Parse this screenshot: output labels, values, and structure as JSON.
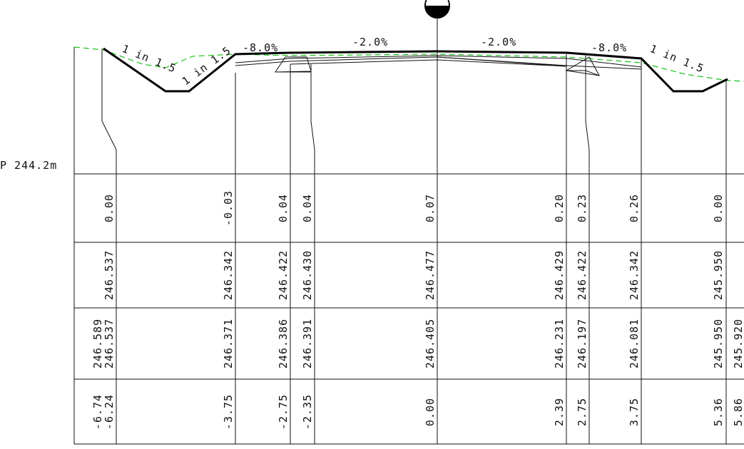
{
  "datum_label": "P 244.2m",
  "slope_labels": {
    "left_cut_outer": "1 in 1.5",
    "left_cut_inner": "1 in 1.5",
    "left_shoulder": "-8.0%",
    "left_lane": "-2.0%",
    "right_lane": "-2.0%",
    "right_shoulder": "-8.0%",
    "right_cut": "1 in 1.5"
  },
  "table": {
    "columns": [
      {
        "offset": [
          "-6.74",
          "-6.24"
        ],
        "existing": [
          "246.589",
          "246.537"
        ],
        "design": [
          "246.537"
        ],
        "depth": [
          "0.00"
        ]
      },
      {
        "offset": [
          "-3.75"
        ],
        "existing": [
          "246.371"
        ],
        "design": [
          "246.342"
        ],
        "depth": [
          "-0.03"
        ]
      },
      {
        "offset": [
          "-2.75"
        ],
        "existing": [
          "246.386"
        ],
        "design": [
          "246.422"
        ],
        "depth": [
          "0.04"
        ]
      },
      {
        "offset": [
          "-2.35"
        ],
        "existing": [
          "246.391"
        ],
        "design": [
          "246.430"
        ],
        "depth": [
          "0.04"
        ]
      },
      {
        "offset": [
          "0.00"
        ],
        "existing": [
          "246.405"
        ],
        "design": [
          "246.477"
        ],
        "depth": [
          "0.07"
        ]
      },
      {
        "offset": [
          "2.39"
        ],
        "existing": [
          "246.231"
        ],
        "design": [
          "246.429"
        ],
        "depth": [
          "0.20"
        ]
      },
      {
        "offset": [
          "2.75"
        ],
        "existing": [
          "246.197"
        ],
        "design": [
          "246.422"
        ],
        "depth": [
          "0.23"
        ]
      },
      {
        "offset": [
          "3.75"
        ],
        "existing": [
          "246.081"
        ],
        "design": [
          "246.342"
        ],
        "depth": [
          "0.26"
        ]
      },
      {
        "offset": [
          "5.36"
        ],
        "existing": [
          "245.950"
        ],
        "design": [
          "245.950"
        ],
        "depth": [
          "0.00"
        ]
      },
      {
        "offset": [
          "5.86"
        ],
        "existing": [
          "245.920"
        ],
        "design": [],
        "depth": []
      }
    ]
  }
}
